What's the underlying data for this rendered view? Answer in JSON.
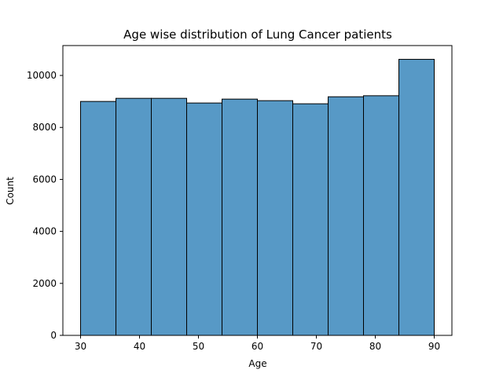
{
  "chart_data": {
    "type": "bar",
    "title": "Age wise distribution of Lung Cancer patients",
    "xlabel": "Age",
    "ylabel": "Count",
    "bins": [
      {
        "start": 30,
        "end": 36,
        "count": 9000
      },
      {
        "start": 36,
        "end": 42,
        "count": 9120
      },
      {
        "start": 42,
        "end": 48,
        "count": 9120
      },
      {
        "start": 48,
        "end": 54,
        "count": 8940
      },
      {
        "start": 54,
        "end": 60,
        "count": 9090
      },
      {
        "start": 60,
        "end": 66,
        "count": 9030
      },
      {
        "start": 66,
        "end": 72,
        "count": 8910
      },
      {
        "start": 72,
        "end": 78,
        "count": 9180
      },
      {
        "start": 78,
        "end": 84,
        "count": 9220
      },
      {
        "start": 84,
        "end": 90,
        "count": 10620
      }
    ],
    "xlim": [
      27,
      93
    ],
    "ylim": [
      0,
      11150
    ],
    "xticks": [
      30,
      40,
      50,
      60,
      70,
      80,
      90
    ],
    "yticks": [
      0,
      2000,
      4000,
      6000,
      8000,
      10000
    ],
    "grid": false,
    "bar_color": "#5799c6"
  }
}
